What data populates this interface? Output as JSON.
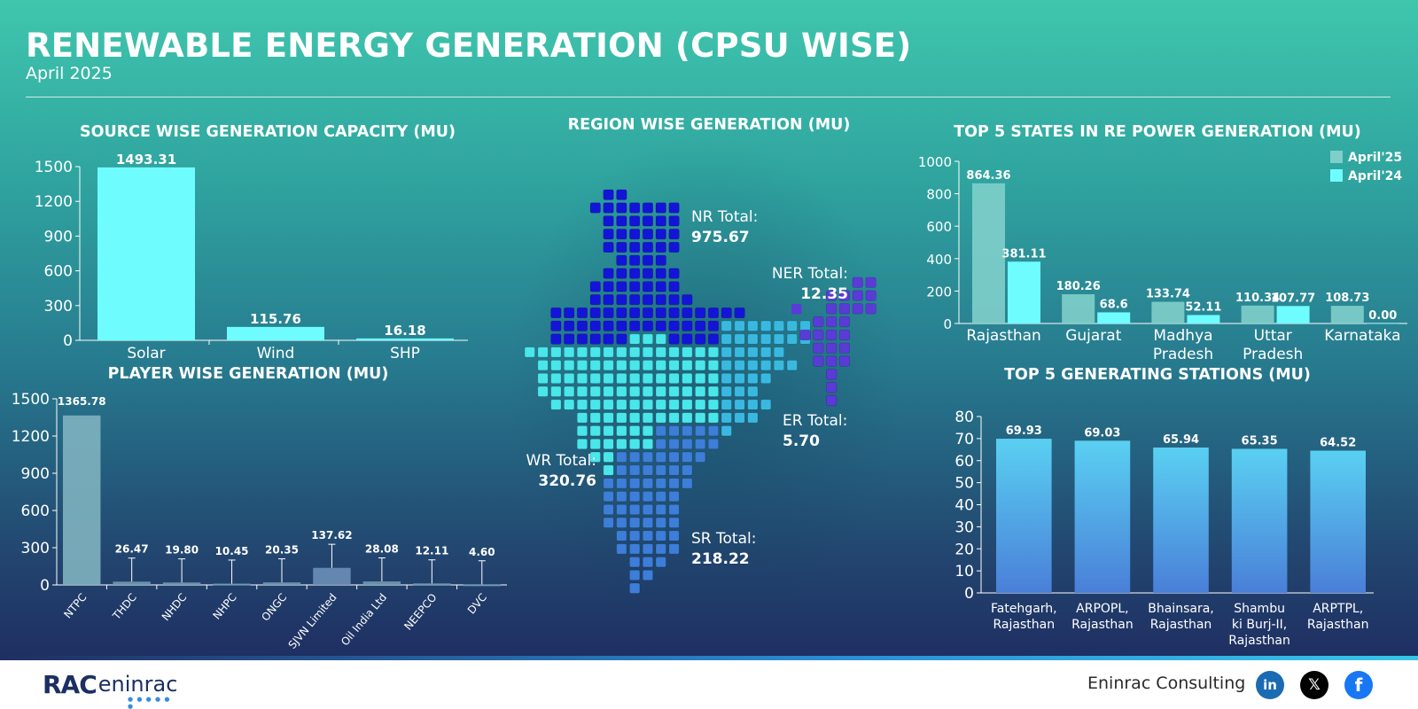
{
  "header": {
    "title": "RENEWABLE ENERGY GENERATION (CPSU WISE)",
    "subtitle": "April 2025"
  },
  "colors": {
    "cyan": "#6ffcff",
    "teal_bar": "#7ecec9",
    "slate_bar": "#6f9ab3",
    "blue_bar_top": "#5ad0f2",
    "blue_bar_bottom": "#4a7fd8",
    "nr": "#1414d8",
    "wr": "#49e6ea",
    "er": "#39b9e0",
    "sr": "#3c7ed8",
    "ner": "#5a3bd8"
  },
  "panels": {
    "source": {
      "title": "SOURCE WISE GENERATION CAPACITY (MU)"
    },
    "player": {
      "title": "PLAYER WISE GENERATION (MU)"
    },
    "region": {
      "title": "REGION WISE GENERATION (MU)"
    },
    "states": {
      "title": "TOP 5 STATES IN RE POWER GENERATION (MU)"
    },
    "stations": {
      "title": "TOP 5 GENERATING STATIONS (MU)"
    }
  },
  "footer": {
    "logo_mark": "RAC",
    "logo_word": "eninrac",
    "brand": "Eninrac Consulting",
    "social": [
      "linkedin-icon",
      "x-icon",
      "facebook-icon"
    ],
    "social_glyphs": {
      "linkedin": "in",
      "x": "𝕏",
      "facebook": "f"
    }
  },
  "chart_data": [
    {
      "id": "source",
      "type": "bar",
      "title": "SOURCE WISE GENERATION CAPACITY (MU)",
      "categories": [
        "Solar",
        "Wind",
        "SHP"
      ],
      "values": [
        1493.31,
        115.76,
        16.18
      ],
      "labels": [
        "1493.31",
        "115.76",
        "16.18"
      ],
      "ylim": [
        0,
        1500
      ],
      "yticks": [
        0,
        300,
        600,
        900,
        1200,
        1500
      ],
      "grid": false
    },
    {
      "id": "player",
      "type": "bar",
      "title": "PLAYER WISE GENERATION (MU)",
      "categories": [
        "NTPC",
        "THDC",
        "NHDC",
        "NHPC",
        "ONGC",
        "SJVN Limited",
        "Oil India Ltd",
        "NEEPCO",
        "DVC"
      ],
      "values": [
        1365.78,
        26.47,
        19.8,
        10.45,
        20.35,
        137.62,
        28.08,
        12.11,
        4.6
      ],
      "labels": [
        "1365.78",
        "26.47",
        "19.80",
        "10.45",
        "20.35",
        "137.62",
        "28.08",
        "12.11",
        "4.60"
      ],
      "ylim": [
        0,
        1500
      ],
      "yticks": [
        0,
        300,
        600,
        900,
        1200,
        1500
      ],
      "grid": false
    },
    {
      "id": "region",
      "type": "map",
      "title": "REGION WISE GENERATION (MU)",
      "regions": [
        {
          "name": "NR",
          "label": "NR Total:",
          "value": "975.67"
        },
        {
          "name": "NER",
          "label": "NER Total:",
          "value": "12.35"
        },
        {
          "name": "ER",
          "label": "ER Total:",
          "value": "5.70"
        },
        {
          "name": "WR",
          "label": "WR Total:",
          "value": "320.76"
        },
        {
          "name": "SR",
          "label": "SR Total:",
          "value": "218.22"
        }
      ]
    },
    {
      "id": "states",
      "type": "bar",
      "title": "TOP 5 STATES IN RE POWER GENERATION (MU)",
      "categories": [
        "Rajasthan",
        "Gujarat",
        "Madhya Pradesh",
        "Uttar Pradesh",
        "Karnataka"
      ],
      "series": [
        {
          "name": "April'25",
          "values": [
            864.36,
            180.26,
            133.74,
            110.34,
            108.73
          ],
          "labels": [
            "864.36",
            "180.26",
            "133.74",
            "110.34",
            "108.73"
          ]
        },
        {
          "name": "April'24",
          "values": [
            381.11,
            68.6,
            52.11,
            107.77,
            0.0
          ],
          "labels": [
            "381.11",
            "68.6",
            "52.11",
            "107.77",
            "0.00"
          ]
        }
      ],
      "ylim": [
        0,
        1000
      ],
      "yticks": [
        0,
        200,
        400,
        600,
        800,
        1000
      ],
      "legend": "top-right",
      "grid": false
    },
    {
      "id": "stations",
      "type": "bar",
      "title": "TOP 5 GENERATING STATIONS (MU)",
      "categories": [
        "Fatehgarh, Rajasthan",
        "ARPOPL, Rajasthan",
        "Bhainsara, Rajasthan",
        "Shambu ki Burj-II, Rajasthan",
        "ARPTPL, Rajasthan"
      ],
      "category_lines": [
        [
          "Fatehgarh,",
          "Rajasthan"
        ],
        [
          "ARPOPL,",
          "Rajasthan"
        ],
        [
          "Bhainsara,",
          "Rajasthan"
        ],
        [
          "Shambu",
          "ki Burj-II,",
          "Rajasthan"
        ],
        [
          "ARPTPL,",
          "Rajasthan"
        ]
      ],
      "values": [
        69.93,
        69.03,
        65.94,
        65.35,
        64.52
      ],
      "labels": [
        "69.93",
        "69.03",
        "65.94",
        "65.35",
        "64.52"
      ],
      "ylim": [
        0,
        80
      ],
      "yticks": [
        0,
        10,
        20,
        30,
        40,
        50,
        60,
        70,
        80
      ],
      "grid": false
    }
  ]
}
